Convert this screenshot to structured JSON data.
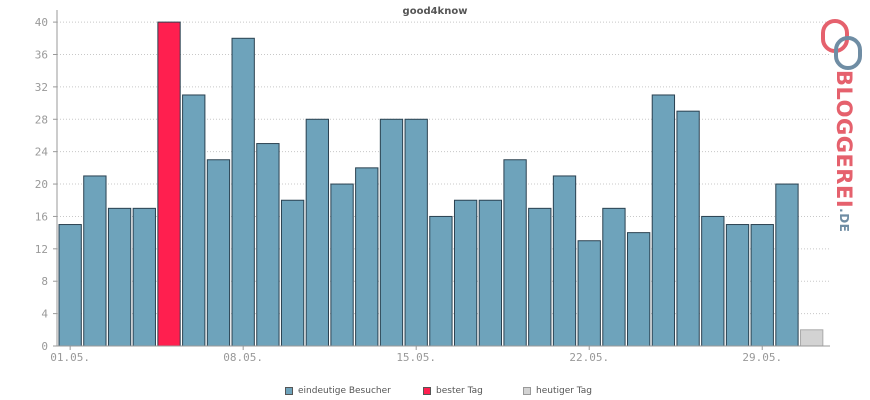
{
  "chart_data": {
    "type": "bar",
    "title": "good4know",
    "x_tick_labels": [
      "01.05.",
      "08.05.",
      "15.05.",
      "22.05.",
      "29.05."
    ],
    "values": [
      15,
      21,
      17,
      17,
      40,
      31,
      23,
      38,
      25,
      18,
      28,
      20,
      22,
      28,
      28,
      16,
      18,
      18,
      23,
      17,
      21,
      13,
      17,
      14,
      31,
      29,
      16,
      15,
      15,
      20,
      2
    ],
    "bar_kinds": [
      "normal",
      "normal",
      "normal",
      "normal",
      "best",
      "normal",
      "normal",
      "normal",
      "normal",
      "normal",
      "normal",
      "normal",
      "normal",
      "normal",
      "normal",
      "normal",
      "normal",
      "normal",
      "normal",
      "normal",
      "normal",
      "normal",
      "normal",
      "normal",
      "normal",
      "normal",
      "normal",
      "normal",
      "normal",
      "normal",
      "today"
    ],
    "ylim": [
      0,
      41
    ],
    "y_ticks": [
      0,
      4,
      8,
      12,
      16,
      20,
      24,
      28,
      32,
      36,
      40
    ],
    "grid": true,
    "legend_placement": "bottom",
    "legend": [
      {
        "label": "eindeutige Besucher",
        "kind": "normal"
      },
      {
        "label": "bester Tag",
        "kind": "best"
      },
      {
        "label": "heutiger Tag",
        "kind": "today"
      }
    ],
    "colors": {
      "normal": "#6ea3bb",
      "best": "#ff1f4f",
      "today": "#d3d3d3",
      "outline": "#2a4150",
      "axis": "#999999",
      "grid": "#c8c8c8",
      "tick_text": "#999999"
    }
  },
  "logo": {
    "main": "BLOGGEREI",
    "suffix": ".DE"
  }
}
